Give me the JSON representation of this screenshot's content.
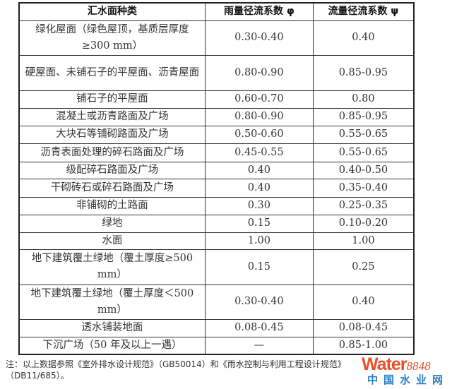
{
  "table": {
    "headers": [
      "汇水面种类",
      "雨量径流系数 φ",
      "流量径流系数 ψ"
    ],
    "rows": [
      [
        "绿化屋面（绿色屋顶，基质层厚度≥300 mm）",
        "0.30-0.40",
        "0.40"
      ],
      [
        "硬屋面、未铺石子的平屋面、沥青屋面",
        "0.80-0.90",
        "0.85-0.95"
      ],
      [
        "铺石子的平屋面",
        "0.60-0.70",
        "0.80"
      ],
      [
        "混凝土或沥青路面及广场",
        "0.80-0.90",
        "0.85-0.95"
      ],
      [
        "大块石等铺砌路面及广场",
        "0.50-0.60",
        "0.55-0.65"
      ],
      [
        "沥青表面处理的碎石路面及广场",
        "0.45-0.55",
        "0.55-0.65"
      ],
      [
        "级配碎石路面及广场",
        "0.40",
        "0.40-0.50"
      ],
      [
        "干砌砖石或碎石路面及广场",
        "0.40",
        "0.35-0.40"
      ],
      [
        "非铺砌的土路面",
        "0.30",
        "0.25-0.35"
      ],
      [
        "绿地",
        "0.15",
        "0.10-0.20"
      ],
      [
        "水面",
        "1.00",
        "1.00"
      ],
      [
        "地下建筑覆土绿地（覆土厚度≥500 mm）",
        "0.15",
        "0.25"
      ],
      [
        "地下建筑覆土绿地（覆土厚度＜500 mm）",
        "0.30-0.40",
        "0.40"
      ],
      [
        "透水铺装地面",
        "0.08-0.45",
        "0.08-0.45"
      ],
      [
        "下沉广场（50 年及以上一遇）",
        "—",
        "0.85-1.00"
      ]
    ]
  },
  "note": "注：以上数据参照《室外排水设计规范》（GB50014）和《雨水控制与利用工程设计规范》（DB11/685）。",
  "watermark": {
    "brand": "Water",
    "number": "8848",
    "subtitle": "中国水业网"
  }
}
